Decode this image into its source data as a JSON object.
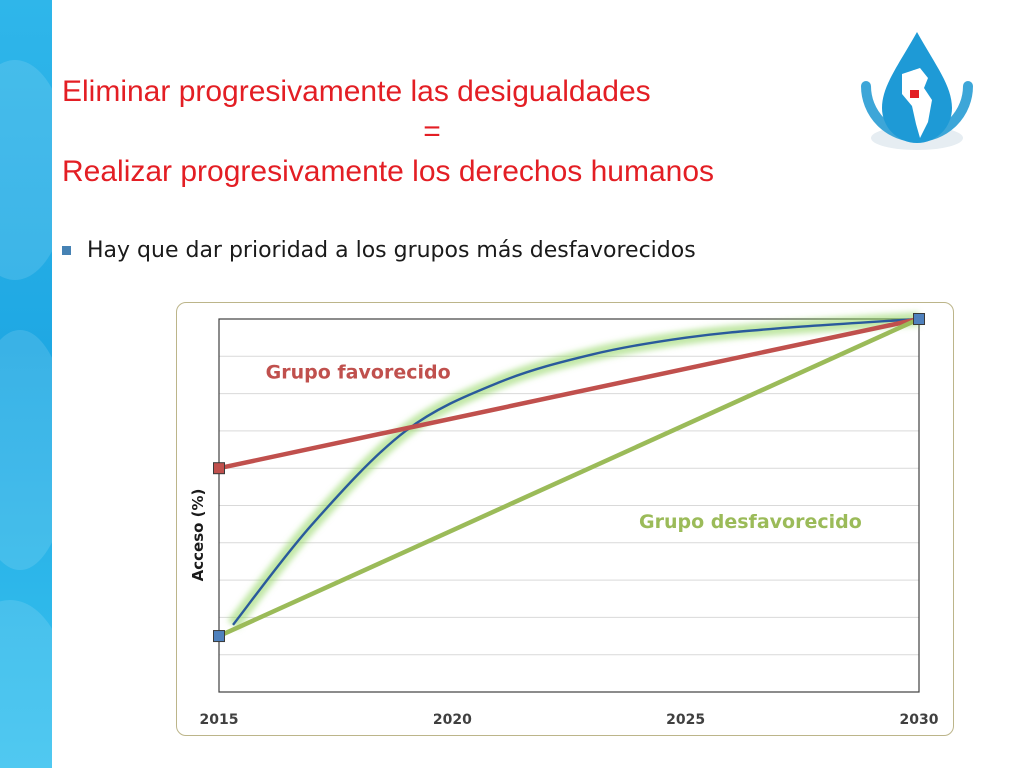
{
  "title": {
    "line1": "Eliminar progresivamente las desigualdades",
    "line2": "=",
    "line3": "Realizar progresivamente los derechos humanos"
  },
  "bullet": "Hay que dar prioridad a los grupos más desfavorecidos",
  "colors": {
    "title": "#e31e24",
    "favorecido": "#c0504d",
    "desfavorecido": "#9bbb59",
    "curve": "#2a5a9c",
    "glow": "#8fd65e",
    "sidebar": "#1fa8e3"
  },
  "chart_data": {
    "type": "line",
    "title": "",
    "xlabel": "",
    "ylabel": "Acceso (%)",
    "x_ticks": [
      "2015",
      "2020",
      "2025",
      "2030"
    ],
    "xlim": [
      2015,
      2030
    ],
    "ylim": [
      0,
      100
    ],
    "y_tick_labels": "none",
    "grid": "horizontal",
    "series": [
      {
        "name": "Grupo favorecido",
        "color": "#c0504d",
        "points": [
          [
            2015,
            60
          ],
          [
            2030,
            100
          ]
        ],
        "markers": true,
        "label_near": [
          2016,
          84
        ]
      },
      {
        "name": "Grupo desfavorecido",
        "color": "#9bbb59",
        "points": [
          [
            2015,
            15
          ],
          [
            2030,
            100
          ]
        ],
        "markers": true,
        "label_near": [
          2024,
          44
        ]
      },
      {
        "name": "",
        "color": "#2a5a9c",
        "glow": true,
        "points": [
          [
            2015.3,
            18
          ],
          [
            2017,
            45
          ],
          [
            2019,
            70
          ],
          [
            2021,
            83
          ],
          [
            2023,
            90.5
          ],
          [
            2025,
            95
          ],
          [
            2027,
            97.5
          ],
          [
            2030,
            100
          ]
        ]
      }
    ]
  }
}
